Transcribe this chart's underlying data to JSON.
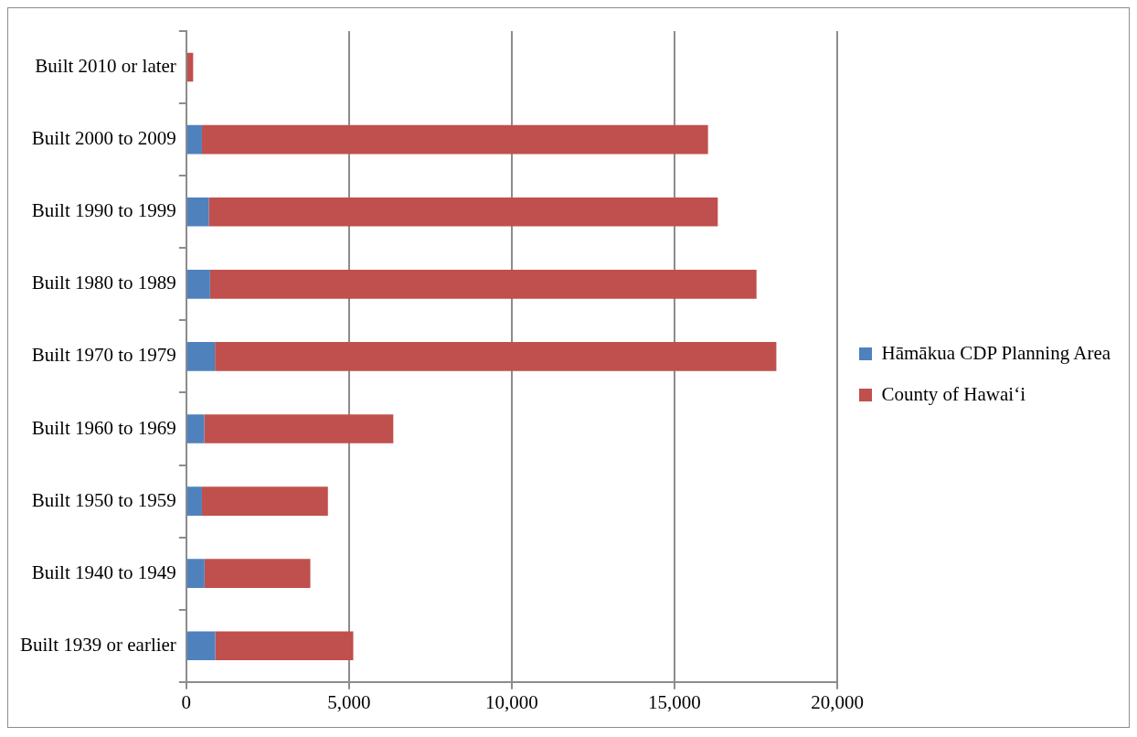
{
  "chart_data": {
    "type": "bar",
    "orientation": "horizontal",
    "stacked": true,
    "categories": [
      "Built 2010 or later",
      "Built 2000 to 2009",
      "Built 1990 to 1999",
      "Built 1980 to 1989",
      "Built 1970 to 1979",
      "Built 1960 to 1969",
      "Built 1950 to 1959",
      "Built 1940 to 1949",
      "Built 1939 or earlier"
    ],
    "series": [
      {
        "name": "Hāmākua CDP Planning Area",
        "color": "#4f81bd",
        "values": [
          0,
          480,
          690,
          730,
          880,
          550,
          480,
          560,
          890
        ]
      },
      {
        "name": "County of Hawai‘i",
        "color": "#c0504d",
        "values": [
          210,
          15550,
          15640,
          16790,
          17250,
          5810,
          3870,
          3250,
          4240
        ]
      }
    ],
    "xlim": [
      0,
      20000
    ],
    "xticks": [
      0,
      {
        "value": 5000,
        "label": "5,000"
      },
      {
        "value": 10000,
        "label": "10,000"
      },
      {
        "value": 15000,
        "label": "15,000"
      },
      {
        "value": 20000,
        "label": "20,000"
      }
    ],
    "grid": "x",
    "legend": "right"
  }
}
